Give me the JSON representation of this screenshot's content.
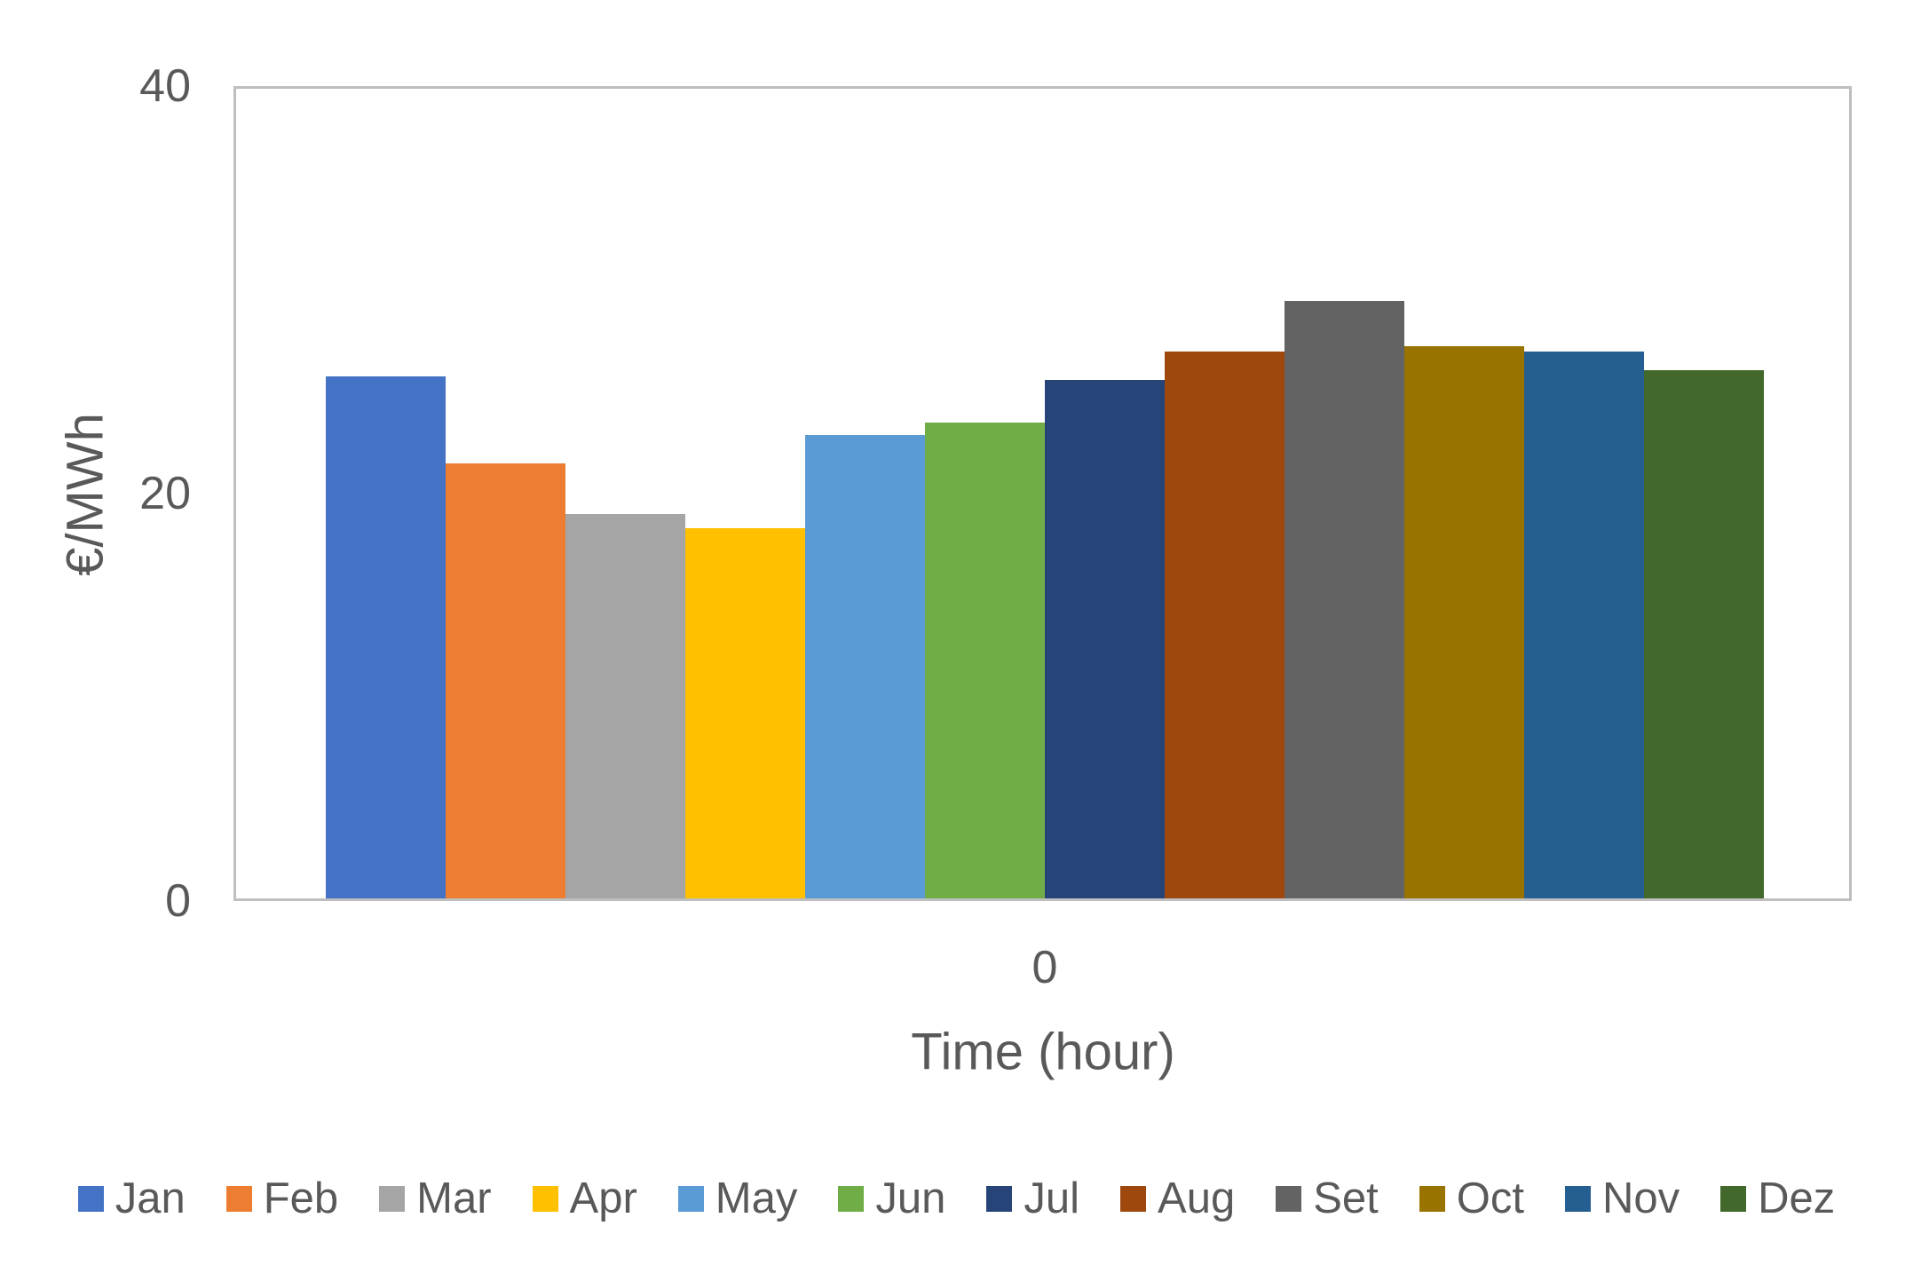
{
  "chart_data": {
    "type": "bar",
    "title": "",
    "xlabel": "Time (hour)",
    "ylabel": "€/MWh",
    "categories": [
      "0"
    ],
    "xticks": [
      "0"
    ],
    "yticks": [
      0,
      20,
      40
    ],
    "ylim": [
      0,
      40
    ],
    "grid": false,
    "legend_position": "bottom",
    "series": [
      {
        "name": "Jan",
        "color": "#4472C4",
        "values": [
          25.8
        ]
      },
      {
        "name": "Feb",
        "color": "#ED7D31",
        "values": [
          21.5
        ]
      },
      {
        "name": "Mar",
        "color": "#A5A5A5",
        "values": [
          19.0
        ]
      },
      {
        "name": "Apr",
        "color": "#FFC000",
        "values": [
          18.3
        ]
      },
      {
        "name": "May",
        "color": "#5B9BD5",
        "values": [
          22.9
        ]
      },
      {
        "name": "Jun",
        "color": "#70AD47",
        "values": [
          23.5
        ]
      },
      {
        "name": "Jul",
        "color": "#264478",
        "values": [
          25.6
        ]
      },
      {
        "name": "Aug",
        "color": "#9E480E",
        "values": [
          27.0
        ]
      },
      {
        "name": "Set",
        "color": "#636363",
        "values": [
          29.5
        ]
      },
      {
        "name": "Oct",
        "color": "#997300",
        "values": [
          27.3
        ]
      },
      {
        "name": "Nov",
        "color": "#255E91",
        "values": [
          27.0
        ]
      },
      {
        "name": "Dez",
        "color": "#43682B",
        "values": [
          26.1
        ]
      }
    ]
  },
  "colors": {
    "axis_text": "#595959",
    "plot_border": "#BFBFBF",
    "background": "#FFFFFF"
  }
}
